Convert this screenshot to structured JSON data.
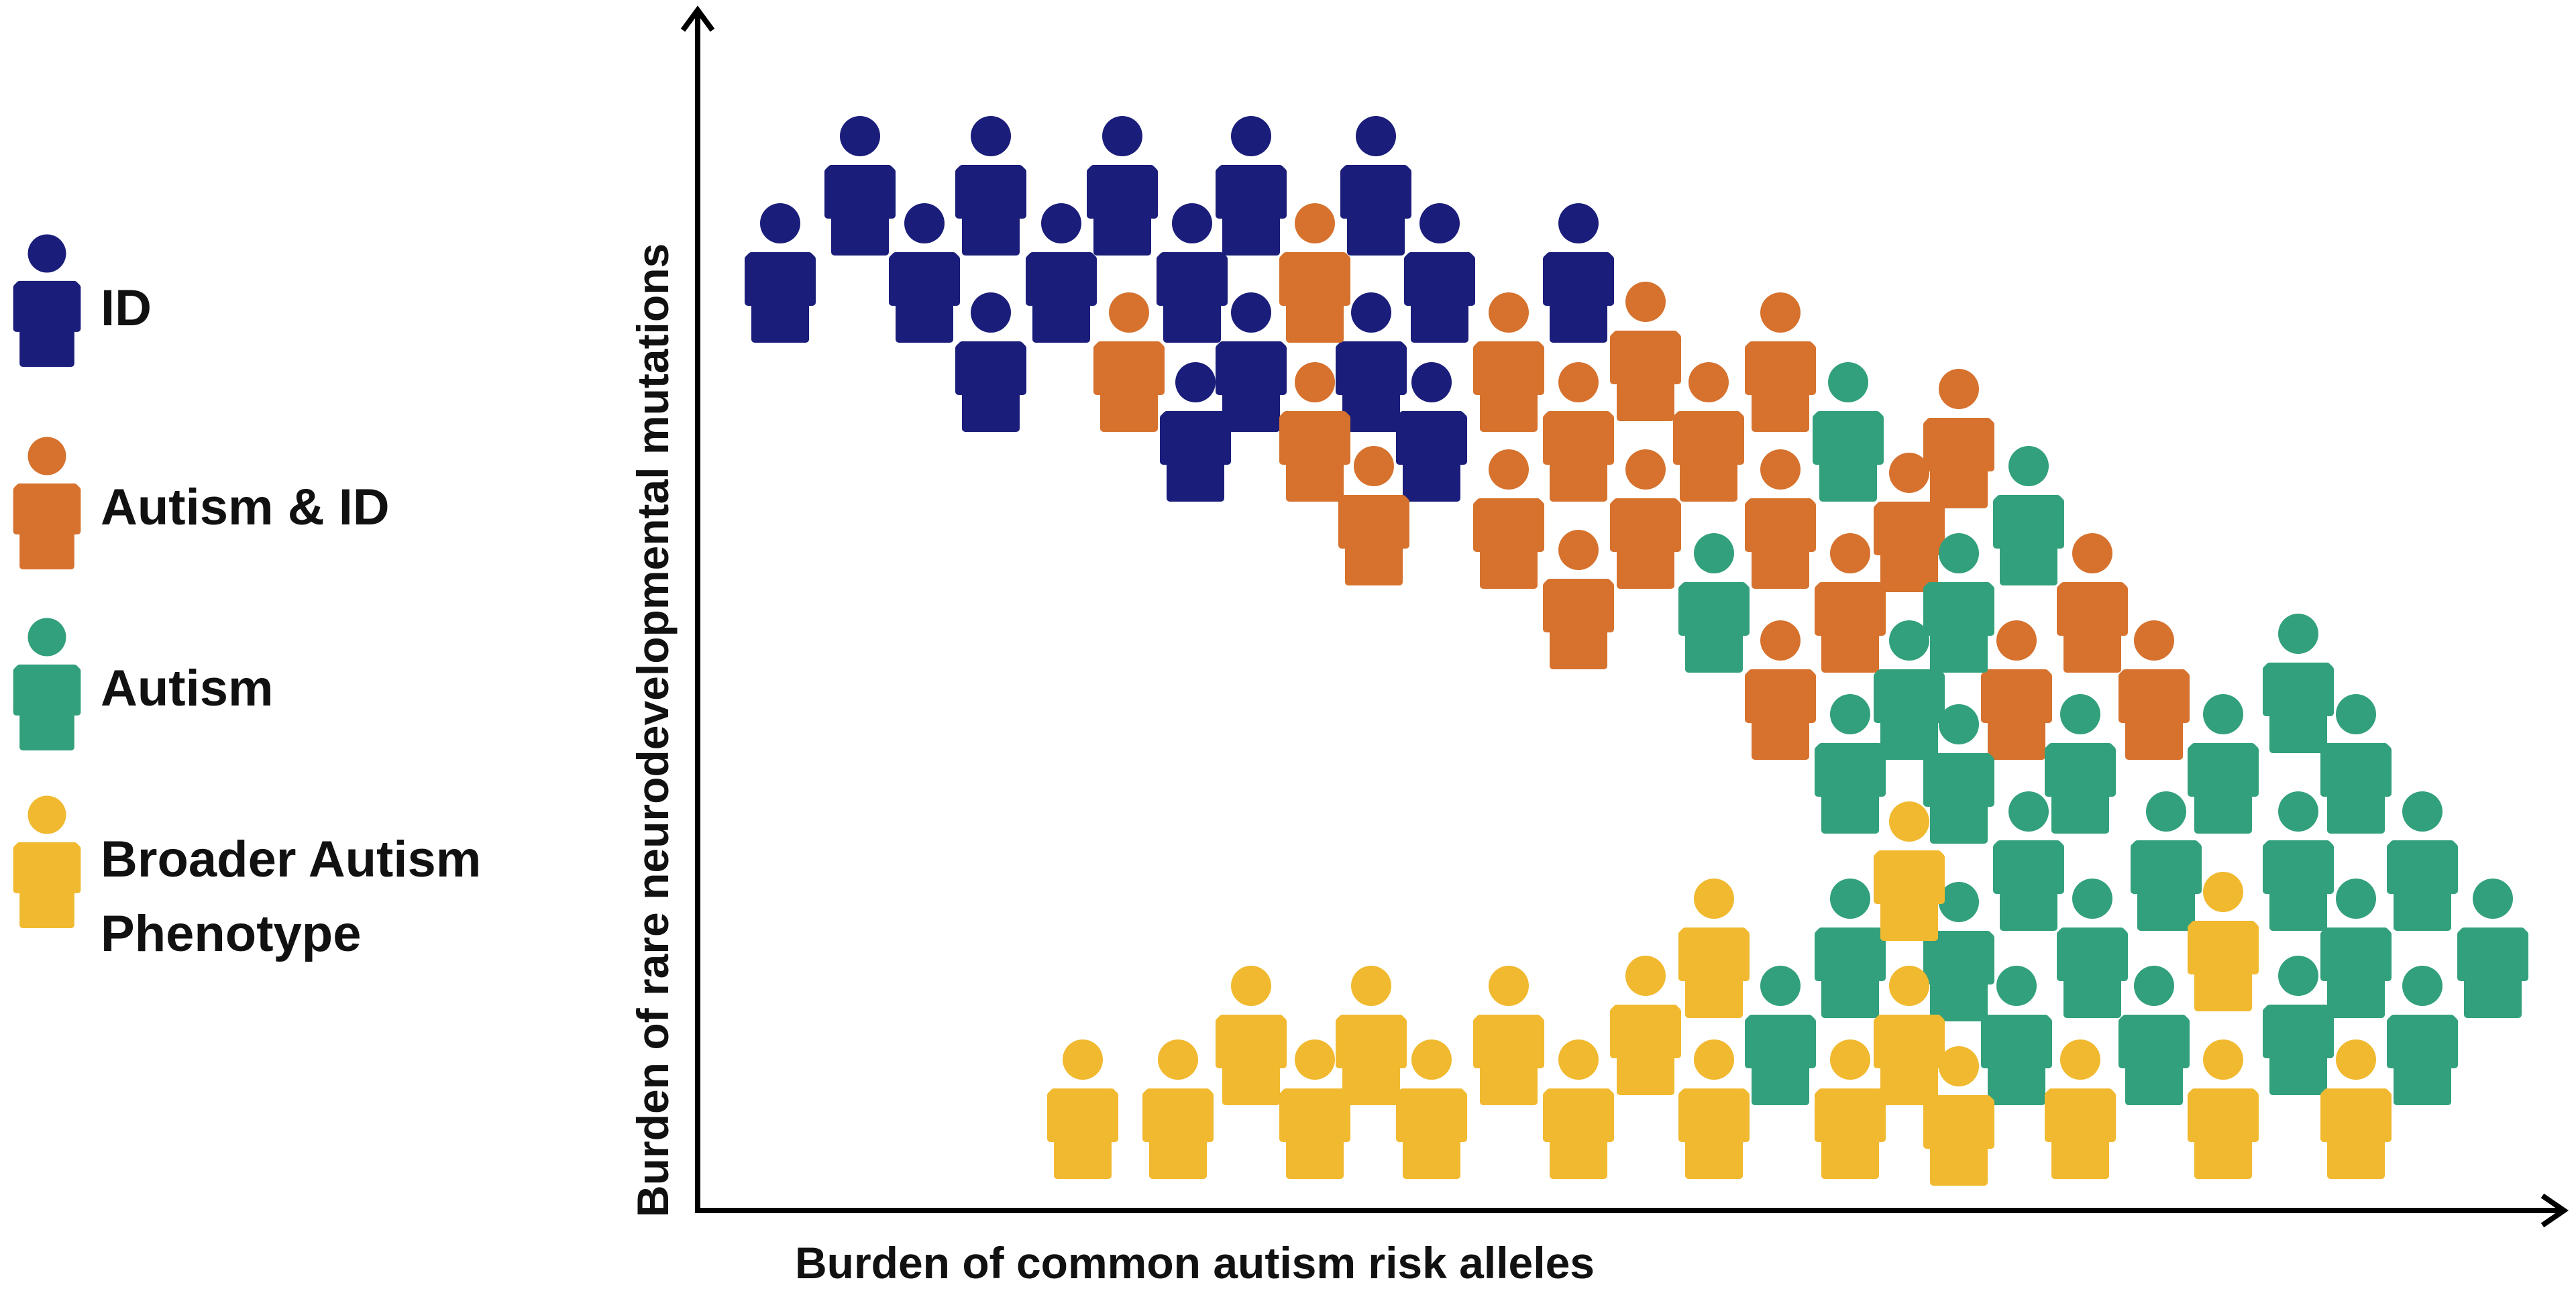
{
  "axes": {
    "x_label": "Burden of common autism risk alleles",
    "y_label": "Burden of rare neurodevelopmental mutations"
  },
  "groups": [
    {
      "key": "id",
      "label": "ID",
      "label_line2": "",
      "color": "#1a1d7a"
    },
    {
      "key": "autism_id",
      "label": "Autism & ID",
      "label_line2": "",
      "color": "#d6722e"
    },
    {
      "key": "autism",
      "label": "Autism",
      "label_line2": "",
      "color": "#32a07c"
    },
    {
      "key": "bap",
      "label": "Broader Autism",
      "label_line2": "Phenotype",
      "color": "#f1b92f"
    }
  ]
}
